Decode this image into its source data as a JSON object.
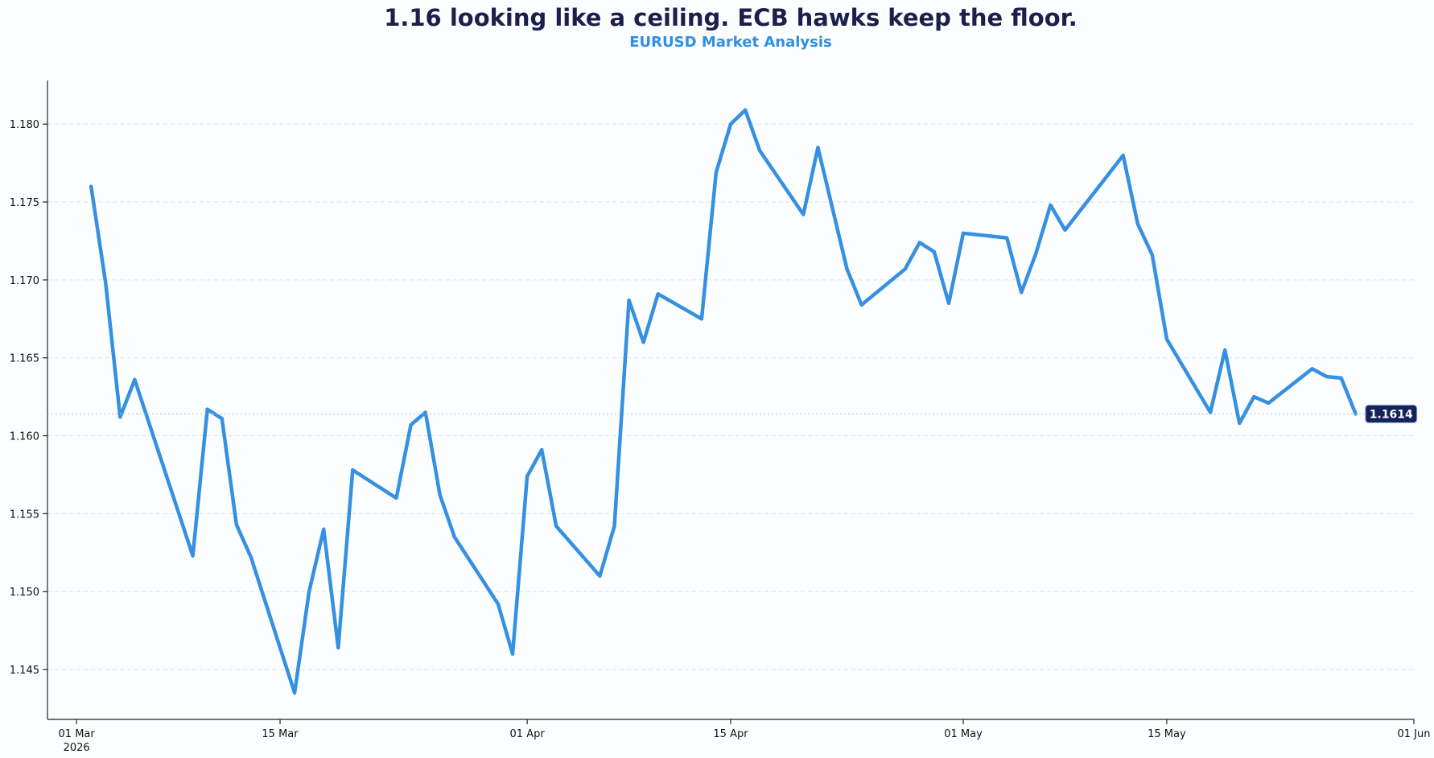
{
  "header": {
    "title": "1.16 looking like a ceiling. ECB hawks keep the floor.",
    "subtitle": "EURUSD Market Analysis"
  },
  "colors": {
    "series": "#3590e2",
    "title": "#1b1f4b",
    "subtitle": "#2f8fe0",
    "badge_bg": "#15215a",
    "badge_text": "#ffffff"
  },
  "chart_data": {
    "type": "line",
    "title": "1.16 looking like a ceiling. ECB hawks keep the floor.",
    "subtitle": "EURUSD Market Analysis",
    "xlabel": "",
    "ylabel": "",
    "grid": "horizontal dashed",
    "xlim": [
      "2026-02-27",
      "2026-06-01"
    ],
    "ylim": [
      1.1418,
      1.1828
    ],
    "x_ticks": [
      {
        "date": "2026-03-01",
        "label": "01 Mar",
        "sublabel": "2026"
      },
      {
        "date": "2026-03-15",
        "label": "15 Mar",
        "sublabel": ""
      },
      {
        "date": "2026-04-01",
        "label": "01 Apr",
        "sublabel": ""
      },
      {
        "date": "2026-04-15",
        "label": "15 Apr",
        "sublabel": ""
      },
      {
        "date": "2026-05-01",
        "label": "01 May",
        "sublabel": ""
      },
      {
        "date": "2026-05-15",
        "label": "15 May",
        "sublabel": ""
      },
      {
        "date": "2026-06-01",
        "label": "01 Jun",
        "sublabel": ""
      }
    ],
    "y_ticks": [
      "1.145",
      "1.150",
      "1.155",
      "1.160",
      "1.165",
      "1.170",
      "1.175",
      "1.180"
    ],
    "last_value_label": "1.1614",
    "series": [
      {
        "x": [
          "2026-03-02",
          "2026-03-03",
          "2026-03-04",
          "2026-03-05",
          "2026-03-09",
          "2026-03-10",
          "2026-03-11",
          "2026-03-12",
          "2026-03-13",
          "2026-03-16",
          "2026-03-17",
          "2026-03-18",
          "2026-03-19",
          "2026-03-20",
          "2026-03-23",
          "2026-03-24",
          "2026-03-25",
          "2026-03-26",
          "2026-03-27",
          "2026-03-30",
          "2026-03-31",
          "2026-04-01",
          "2026-04-02",
          "2026-04-03",
          "2026-04-06",
          "2026-04-07",
          "2026-04-08",
          "2026-04-09",
          "2026-04-10",
          "2026-04-13",
          "2026-04-14",
          "2026-04-15",
          "2026-04-16",
          "2026-04-17",
          "2026-04-20",
          "2026-04-21",
          "2026-04-23",
          "2026-04-24",
          "2026-04-27",
          "2026-04-28",
          "2026-04-29",
          "2026-04-30",
          "2026-05-01",
          "2026-05-04",
          "2026-05-05",
          "2026-05-06",
          "2026-05-07",
          "2026-05-08",
          "2026-05-11",
          "2026-05-12",
          "2026-05-13",
          "2026-05-14",
          "2026-05-15",
          "2026-05-18",
          "2026-05-19",
          "2026-05-20",
          "2026-05-21",
          "2026-05-22",
          "2026-05-25",
          "2026-05-26",
          "2026-05-27",
          "2026-05-28"
        ],
        "values": [
          1.176,
          1.1698,
          1.1612,
          1.1636,
          1.1523,
          1.1617,
          1.1611,
          1.1543,
          1.1522,
          1.1435,
          1.15,
          1.154,
          1.1464,
          1.1578,
          1.156,
          1.1607,
          1.1615,
          1.1562,
          1.1535,
          1.1492,
          1.146,
          1.1574,
          1.1591,
          1.1542,
          1.151,
          1.1542,
          1.1687,
          1.166,
          1.1691,
          1.1675,
          1.1769,
          1.18,
          1.1809,
          1.1783,
          1.1742,
          1.1785,
          1.1707,
          1.1684,
          1.1707,
          1.1724,
          1.1718,
          1.1685,
          1.173,
          1.1727,
          1.1692,
          1.1717,
          1.1748,
          1.1732,
          1.1768,
          1.178,
          1.1736,
          1.1716,
          1.1662,
          1.1615,
          1.1655,
          1.1608,
          1.1625,
          1.1621,
          1.1643,
          1.1638,
          1.1637,
          1.1614
        ]
      }
    ]
  }
}
